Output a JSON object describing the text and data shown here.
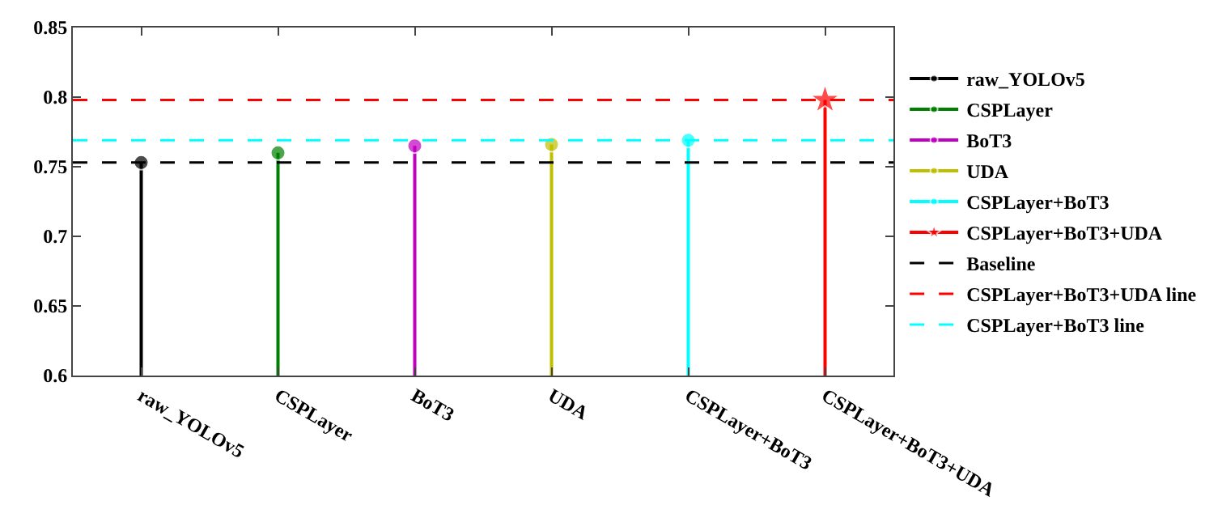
{
  "chart_data": {
    "type": "lollipop",
    "categories": [
      "raw_YOLOv5",
      "CSPLayer",
      "BoT3",
      "UDA",
      "CSPLayer+BoT3",
      "CSPLayer+BoT3+UDA"
    ],
    "series": [
      {
        "name": "raw_YOLOv5",
        "color": "#000000",
        "marker": "circle",
        "values": [
          0.753,
          null,
          null,
          null,
          null,
          null
        ]
      },
      {
        "name": "CSPLayer",
        "color": "#008000",
        "marker": "circle",
        "values": [
          null,
          0.76,
          null,
          null,
          null,
          null
        ]
      },
      {
        "name": "BoT3",
        "color": "#c000c0",
        "marker": "circle",
        "values": [
          null,
          null,
          0.765,
          null,
          null,
          null
        ]
      },
      {
        "name": "UDA",
        "color": "#bfbf00",
        "marker": "circle",
        "values": [
          null,
          null,
          null,
          0.766,
          null,
          null
        ]
      },
      {
        "name": "CSPLayer+BoT3",
        "color": "#00ffff",
        "marker": "circle",
        "values": [
          null,
          null,
          null,
          null,
          0.769,
          null
        ]
      },
      {
        "name": "CSPLayer+BoT3+UDA",
        "color": "#ff0000",
        "marker": "star",
        "values": [
          null,
          null,
          null,
          null,
          null,
          0.798
        ]
      }
    ],
    "ref_lines": [
      {
        "axis": "y",
        "value": 0.753,
        "label": "Baseline",
        "color": "#000000",
        "line_style": "dashed"
      },
      {
        "axis": "y",
        "value": 0.798,
        "label": "CSPLayer+BoT3+UDA line",
        "color": "#ff0000",
        "line_style": "dashed"
      },
      {
        "axis": "y",
        "value": 0.769,
        "label": "CSPLayer+BoT3 line",
        "color": "#00ffff",
        "line_style": "dashed"
      }
    ],
    "ylim": [
      0.6,
      0.85
    ],
    "yticks": [
      0.6,
      0.65,
      0.7,
      0.75,
      0.8,
      0.85
    ],
    "grid": false,
    "legend": "right"
  }
}
